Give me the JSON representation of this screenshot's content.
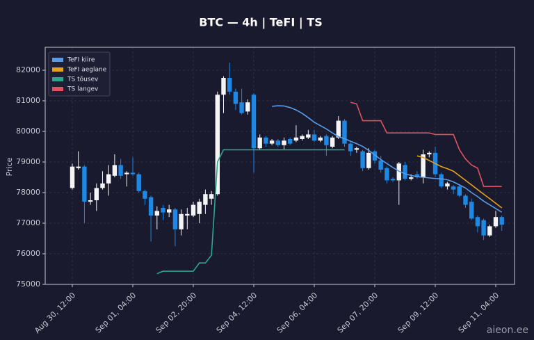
{
  "chart_data": {
    "type": "candlestick",
    "title": "BTC — 4h  |  TeFI  |  TS",
    "y_label": "Price",
    "watermark": "aieon.ee",
    "categories": [
      "Aug 30, 12:00",
      null,
      null,
      null,
      null,
      null,
      null,
      null,
      null,
      null,
      "Sep 01, 04:00",
      null,
      null,
      null,
      null,
      null,
      null,
      null,
      null,
      null,
      "Sep 02, 20:00",
      null,
      null,
      null,
      null,
      null,
      null,
      null,
      null,
      null,
      "Sep 04, 12:00",
      null,
      null,
      null,
      null,
      null,
      null,
      null,
      null,
      null,
      "Sep 06, 04:00",
      null,
      null,
      null,
      null,
      null,
      null,
      null,
      null,
      null,
      "Sep 07, 20:00",
      null,
      null,
      null,
      null,
      null,
      null,
      null,
      null,
      null,
      "Sep 09, 12:00",
      null,
      null,
      null,
      null,
      null,
      null,
      null,
      null,
      null,
      "Sep 11, 04:00",
      null
    ],
    "open": [
      78150,
      78800,
      78850,
      77700,
      77750,
      78150,
      78300,
      78550,
      78900,
      78600,
      78650,
      78600,
      78050,
      77850,
      77250,
      77500,
      77350,
      77450,
      76800,
      77250,
      77250,
      77300,
      77600,
      77800,
      77950,
      81200,
      81750,
      81300,
      80950,
      80650,
      81200,
      79450,
      79800,
      79600,
      79700,
      79550,
      79750,
      79700,
      79750,
      79800,
      79900,
      79700,
      79850,
      79500,
      79800,
      80350,
      79600,
      79400,
      79350,
      78800,
      79350,
      79050,
      78800,
      78450,
      78400,
      78900,
      78450,
      78600,
      78500,
      79250,
      79300,
      78600,
      78200,
      78200,
      78200,
      77900,
      77700,
      77200,
      77100,
      76600,
      76900,
      77200
    ],
    "high": [
      78950,
      79350,
      78900,
      78000,
      78300,
      78700,
      78900,
      79250,
      79100,
      78700,
      79150,
      78650,
      78100,
      77900,
      77550,
      77600,
      77600,
      77500,
      77450,
      77500,
      77700,
      77800,
      78100,
      78050,
      81300,
      81800,
      82250,
      81400,
      81400,
      81050,
      81250,
      79900,
      79850,
      79750,
      79750,
      79800,
      79800,
      80200,
      79900,
      80050,
      80050,
      79850,
      79900,
      79850,
      80500,
      80400,
      79650,
      79500,
      79400,
      79450,
      79400,
      79200,
      78850,
      78500,
      79000,
      79000,
      78600,
      78700,
      79400,
      79350,
      79500,
      78650,
      78350,
      78250,
      78250,
      77950,
      77800,
      77250,
      77150,
      76950,
      77400,
      77250
    ],
    "low": [
      78100,
      78750,
      77000,
      77600,
      77400,
      78100,
      77900,
      78500,
      78450,
      78200,
      78550,
      78000,
      77600,
      76400,
      76800,
      77100,
      77200,
      76250,
      76600,
      76800,
      77200,
      77000,
      77300,
      77600,
      77900,
      80600,
      81200,
      80700,
      80550,
      80550,
      78650,
      79400,
      79500,
      79550,
      79500,
      79400,
      79550,
      79650,
      79700,
      79750,
      79650,
      79650,
      79200,
      79450,
      79750,
      79500,
      79200,
      79300,
      78700,
      78750,
      78950,
      78650,
      78300,
      78350,
      77600,
      78400,
      78400,
      78450,
      78300,
      79150,
      78500,
      78150,
      78100,
      77950,
      77850,
      77500,
      77100,
      76700,
      76450,
      76550,
      76850,
      76750
    ],
    "close": [
      78850,
      78850,
      77700,
      77750,
      78150,
      78300,
      78600,
      78900,
      78550,
      78650,
      78600,
      78050,
      77800,
      77250,
      77400,
      77350,
      77450,
      76800,
      77300,
      77300,
      77600,
      77700,
      77950,
      77950,
      81200,
      81750,
      81300,
      80900,
      80600,
      80950,
      79450,
      79800,
      79600,
      79700,
      79550,
      79700,
      79600,
      79800,
      79850,
      79900,
      79700,
      79800,
      79550,
      79800,
      80350,
      79600,
      79350,
      79450,
      78800,
      79300,
      79050,
      78750,
      78400,
      78400,
      78950,
      78450,
      78500,
      78500,
      79250,
      79300,
      78600,
      78200,
      78300,
      78100,
      77900,
      77600,
      77150,
      76900,
      76600,
      76900,
      77200,
      76950
    ],
    "up_color": "#f5f5f5",
    "down_color": "#1e88e5",
    "series": [
      {
        "name": "TeFI kiire",
        "color": "#5b9be6",
        "values": [
          null,
          null,
          null,
          null,
          null,
          null,
          null,
          null,
          null,
          null,
          null,
          null,
          null,
          null,
          null,
          null,
          null,
          null,
          null,
          null,
          null,
          null,
          null,
          null,
          null,
          null,
          null,
          null,
          null,
          null,
          null,
          null,
          null,
          80820,
          80840,
          80830,
          80780,
          80700,
          80590,
          80450,
          80300,
          80190,
          80080,
          79950,
          79830,
          79760,
          79680,
          79600,
          79510,
          79380,
          79230,
          79080,
          78950,
          78820,
          78700,
          78620,
          78560,
          78520,
          78500,
          78480,
          78460,
          78450,
          78420,
          78350,
          78250,
          78150,
          78000,
          77870,
          77720,
          77600,
          77480,
          77360
        ]
      },
      {
        "name": "TeFI aeglane",
        "color": "#e5a21e",
        "values": [
          null,
          null,
          null,
          null,
          null,
          null,
          null,
          null,
          null,
          null,
          null,
          null,
          null,
          null,
          null,
          null,
          null,
          null,
          null,
          null,
          null,
          null,
          null,
          null,
          null,
          null,
          null,
          null,
          null,
          null,
          null,
          null,
          null,
          null,
          null,
          null,
          null,
          null,
          null,
          null,
          null,
          null,
          null,
          null,
          null,
          null,
          null,
          null,
          null,
          null,
          null,
          null,
          null,
          null,
          null,
          null,
          null,
          79200,
          79150,
          79050,
          78950,
          78850,
          78780,
          78700,
          78550,
          78400,
          78250,
          78100,
          77950,
          77800,
          77650,
          77500
        ]
      },
      {
        "name": "TS tõusev",
        "color": "#2ea68c",
        "values": [
          null,
          null,
          null,
          null,
          null,
          null,
          null,
          null,
          null,
          null,
          null,
          null,
          null,
          null,
          75350,
          75430,
          75430,
          75430,
          75430,
          75430,
          75430,
          75700,
          75700,
          75950,
          79000,
          79400,
          79400,
          79400,
          79400,
          79400,
          79400,
          79400,
          79400,
          79400,
          79400,
          79400,
          79400,
          79400,
          79400,
          79400,
          79400,
          79400,
          79400,
          79400,
          79400,
          79400,
          null,
          null,
          null,
          null,
          null,
          null,
          null,
          null,
          null,
          null,
          null,
          null,
          null,
          null,
          null,
          null,
          null,
          null,
          null,
          null,
          null,
          null,
          null,
          null,
          null,
          null
        ]
      },
      {
        "name": "TS langev",
        "color": "#e0535e",
        "values": [
          null,
          null,
          null,
          null,
          null,
          null,
          null,
          null,
          null,
          null,
          null,
          null,
          null,
          null,
          null,
          null,
          null,
          null,
          null,
          null,
          null,
          null,
          null,
          null,
          null,
          null,
          null,
          null,
          null,
          null,
          null,
          null,
          null,
          null,
          null,
          null,
          null,
          null,
          null,
          null,
          null,
          null,
          null,
          null,
          null,
          null,
          80950,
          80900,
          80350,
          80350,
          80350,
          80350,
          79950,
          79950,
          79950,
          79950,
          79950,
          79950,
          79950,
          79950,
          79900,
          79900,
          79900,
          79900,
          79400,
          79100,
          78900,
          78800,
          78200,
          78200,
          78200,
          78200
        ]
      }
    ],
    "ylim": [
      75000,
      82750
    ],
    "yticks": [
      75000,
      76000,
      77000,
      78000,
      79000,
      80000,
      81000,
      82000
    ],
    "grid": true,
    "legend": "upper left"
  }
}
